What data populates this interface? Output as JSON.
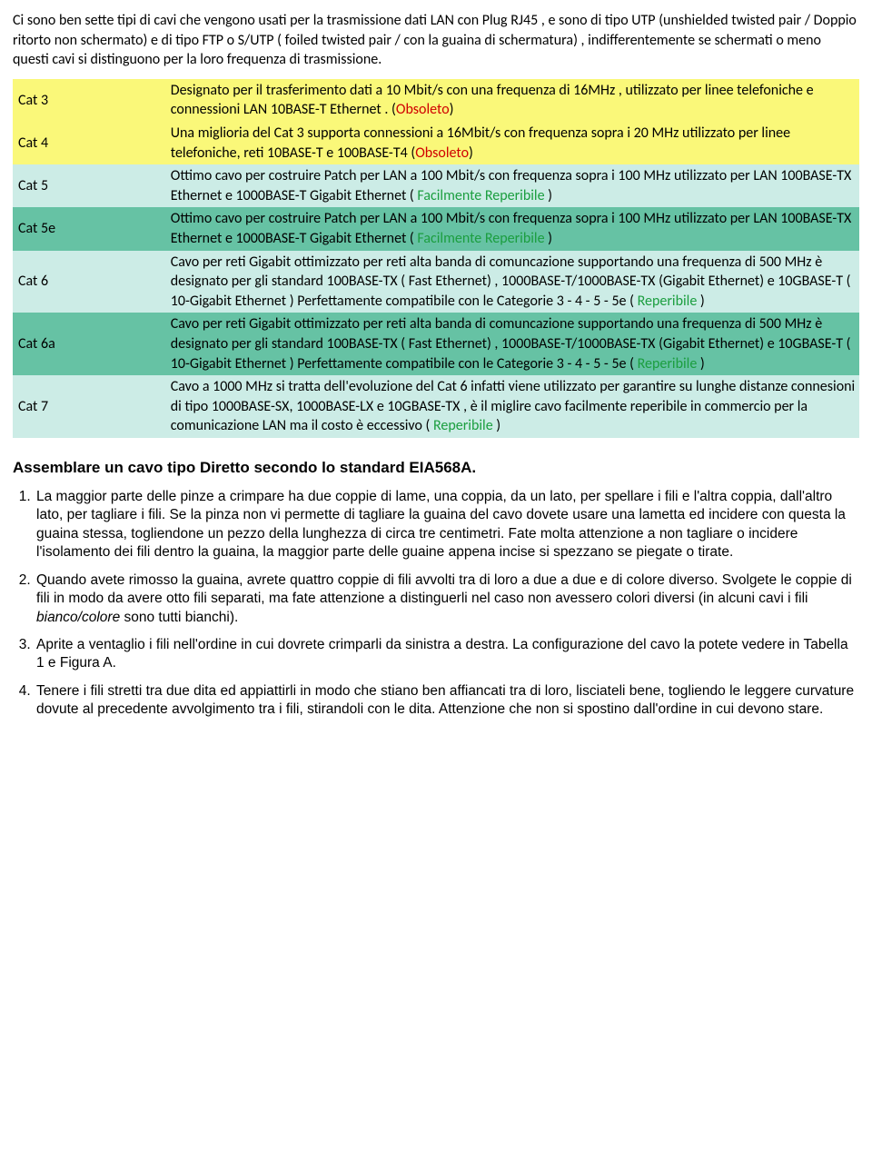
{
  "colors": {
    "bg_yellow": "#faf879",
    "bg_teal": "#ccece6",
    "bg_green": "#66c2a4",
    "tag_red": "#d00000",
    "tag_green": "#1b9e3f"
  },
  "intro": "Ci sono ben sette tipi di cavi che vengono usati per la trasmissione dati LAN con Plug RJ45 , e sono di tipo UTP (unshielded twisted pair / Doppio ritorto non schermato) e di tipo FTP o S/UTP (  foiled twisted pair / con la guaina di schermatura) , indifferentemente se schermati o meno questi cavi si distinguono per la loro frequenza di trasmissione.",
  "table": {
    "rows": [
      {
        "label": "Cat 3",
        "bg": "#faf879",
        "desc": "Designato per il trasferimento dati a 10 Mbit/s con una frequenza di 16MHz , utilizzato per linee telefoniche e connessioni LAN 10BASE-T Ethernet . ",
        "tag_paren_o": "(",
        "tag_text": "Obsoleto",
        "tag_color": "#d00000",
        "tag_paren_c": ")"
      },
      {
        "label": "Cat 4",
        "bg": "#faf879",
        "desc": "Una miglioria del Cat 3 supporta connessioni  a 16Mbit/s con frequenza  sopra i 20 MHz  utilizzato per linee telefoniche,  reti 10BASE-T e 100BASE-T4 ",
        "tag_paren_o": "(",
        "tag_text": "Obsoleto",
        "tag_color": "#d00000",
        "tag_paren_c": ")"
      },
      {
        "label": "Cat 5",
        "bg": "#ccece6",
        "desc": "Ottimo cavo per costruire Patch per LAN a 100 Mbit/s  con frequenza sopra i 100 MHz  utilizzato per LAN 100BASE-TX Ethernet e 1000BASE-T Gigabit Ethernet ( ",
        "tag_paren_o": "",
        "tag_text": "Facilmente Reperibile",
        "tag_color": "#1b9e3f",
        "tag_paren_c": " )"
      },
      {
        "label": "Cat 5e",
        "bg": "#66c2a4",
        "desc": "Ottimo cavo per costruire Patch per LAN a 100 Mbit/s  con frequenza sopra i 100 MHz  utilizzato per LAN 100BASE-TX Ethernet e 1000BASE-T Gigabit Ethernet ( ",
        "tag_paren_o": "",
        "tag_text": "Facilmente Reperibile",
        "tag_color": "#1b9e3f",
        "tag_paren_c": " )"
      },
      {
        "label": "Cat 6",
        "bg": "#ccece6",
        "desc": "Cavo per reti Gigabit ottimizzato per reti alta banda di comuncazione  supportando una frequenza di 500 MHz  è designato per gli standard  100BASE-TX ( Fast Ethernet) , 1000BASE-T/1000BASE-TX (Gigabit Ethernet) e 10GBASE-T ( 10-Gigabit Ethernet ) Perfettamente compatibile con le Categorie 3 - 4 - 5 - 5e ( ",
        "tag_paren_o": "",
        "tag_text": "Reperibile",
        "tag_color": "#1b9e3f",
        "tag_paren_c": " )"
      },
      {
        "label": "Cat 6a",
        "bg": "#66c2a4",
        "desc": "Cavo per reti Gigabit ottimizzato per reti alta banda di comuncazione  supportando una frequenza di 500 MHz  è designato per gli standard  100BASE-TX ( Fast Ethernet) , 1000BASE-T/1000BASE-TX (Gigabit Ethernet) e 10GBASE-T ( 10-Gigabit Ethernet ) Perfettamente compatibile con le Categorie 3 - 4 - 5 - 5e ( ",
        "tag_paren_o": "",
        "tag_text": "Reperibile",
        "tag_color": "#1b9e3f",
        "tag_paren_c": " )"
      },
      {
        "label": "Cat 7",
        "bg": "#ccece6",
        "desc": "Cavo a 1000 MHz si tratta dell'evoluzione del Cat 6 infatti viene utilizzato per garantire su lunghe distanze connesioni di tipo 1000BASE-SX, 1000BASE-LX e 10GBASE-TX , è il miglire cavo facilmente reperibile in commercio per la comunicazione LAN ma il costo è eccessivo ( ",
        "tag_paren_o": "",
        "tag_text": "Reperibile",
        "tag_color": "#1b9e3f",
        "tag_paren_c": " )"
      }
    ]
  },
  "section_title": "Assemblare un cavo tipo Diretto secondo lo standard EIA568A.",
  "steps": {
    "s1": "La maggior parte delle pinze a crimpare ha due coppie di lame, una coppia, da un lato, per spellare i fili e l'altra coppia, dall'altro lato, per tagliare i fili. Se la pinza non vi permette di tagliare la guaina del cavo dovete usare una lametta ed incidere con questa la guaina stessa, togliendone un pezzo della lunghezza di circa tre centimetri. Fate molta attenzione a non tagliare o incidere l'isolamento dei fili dentro la guaina, la maggior parte delle guaine appena incise si spezzano se piegate o tirate.",
    "s2a": "Quando avete rimosso la guaina, avrete quattro coppie di fili avvolti tra di loro a due a due e di colore diverso. Svolgete le coppie di fili in modo da avere otto fili separati, ma fate attenzione a distinguerli nel caso non avessero colori diversi (in alcuni cavi i fili ",
    "s2_italic": "bianco/colore",
    "s2b": " sono tutti bianchi).",
    "s3": "Aprite a ventaglio i fili nell'ordine in cui dovrete crimparli da sinistra a destra. La configurazione del cavo la potete vedere in Tabella 1 e Figura A.",
    "s4": "Tenere i fili stretti tra due dita ed appiattirli in modo che stiano ben affiancati tra di loro, lisciateli bene, togliendo le leggere curvature dovute al precedente avvolgimento tra i fili, stirandoli con le dita. Attenzione che non si spostino dall'ordine in cui devono stare."
  }
}
